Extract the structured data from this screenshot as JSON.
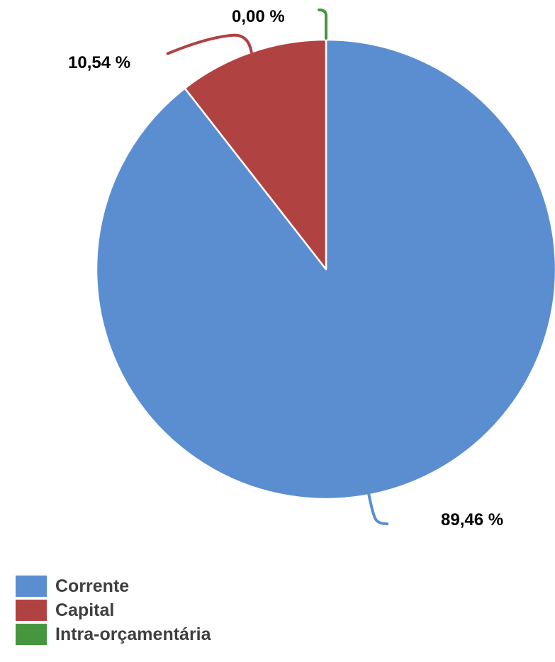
{
  "chart_data": {
    "type": "pie",
    "categories": [
      "Corrente",
      "Capital",
      "Intra-orçamentária"
    ],
    "values": [
      89.46,
      10.54,
      0.0
    ],
    "labels": [
      "89,46 %",
      "10,54 %",
      "0,00 %"
    ],
    "colors": [
      "#5b8ed1",
      "#b14242",
      "#46963f"
    ],
    "legend_position": "bottom-left",
    "start_angle_deg": 0,
    "direction": "clockwise"
  }
}
